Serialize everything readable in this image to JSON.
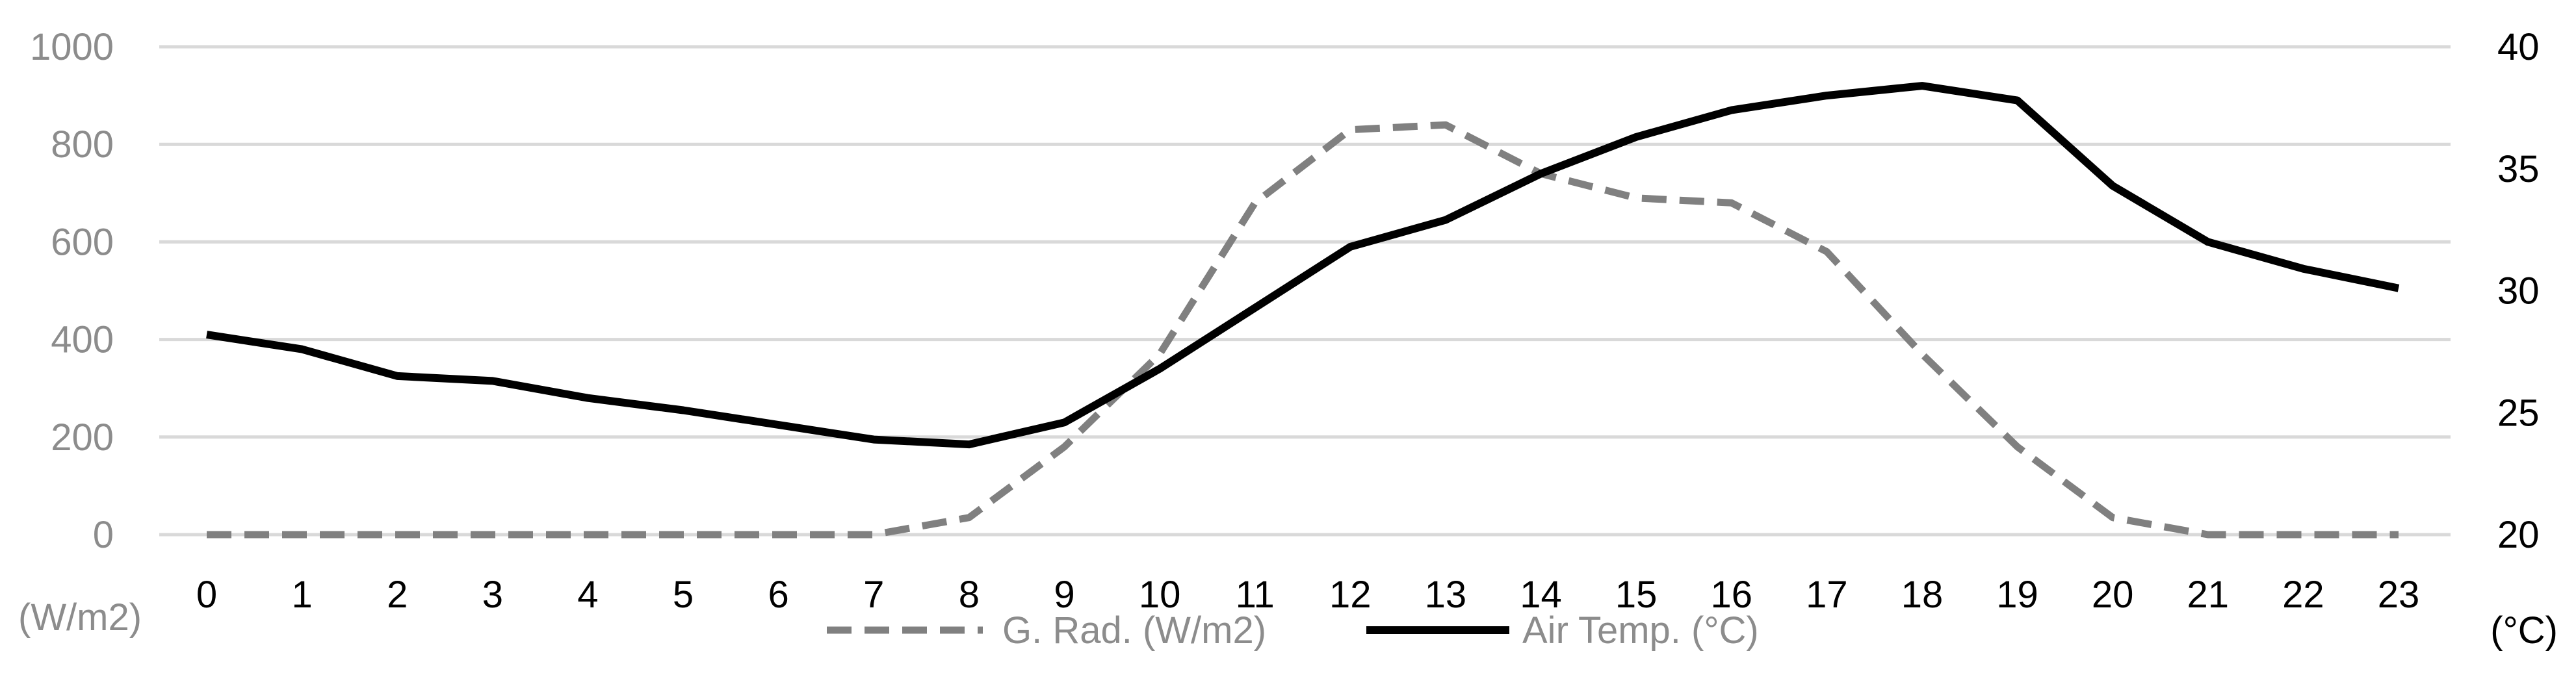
{
  "chart_data": {
    "type": "line",
    "title": "",
    "xlabel": "",
    "ylabel": "(W/m2)",
    "y2label": "(°C)",
    "categories": [
      "0",
      "1",
      "2",
      "3",
      "4",
      "5",
      "6",
      "7",
      "8",
      "9",
      "10",
      "11",
      "12",
      "13",
      "14",
      "15",
      "16",
      "17",
      "18",
      "19",
      "20",
      "21",
      "22",
      "23"
    ],
    "ylim": [
      0,
      1000
    ],
    "y2lim": [
      20,
      40
    ],
    "yticks": [
      "0",
      "200",
      "400",
      "600",
      "800",
      "1000"
    ],
    "y2ticks": [
      "20",
      "25",
      "30",
      "35",
      "40"
    ],
    "grid": true,
    "legend_position": "bottom",
    "series": [
      {
        "name": "G. Rad. (W/m2)",
        "axis": "left",
        "color": "#808080",
        "style": "dashed",
        "values": [
          0,
          0,
          0,
          0,
          0,
          0,
          0,
          0,
          35,
          180,
          370,
          680,
          830,
          840,
          740,
          690,
          680,
          580,
          370,
          180,
          35,
          0,
          0,
          0
        ]
      },
      {
        "name": "Air Temp. (°C)",
        "axis": "right",
        "color": "#000000",
        "style": "solid",
        "values": [
          28.2,
          27.6,
          26.5,
          26.3,
          25.6,
          25.1,
          24.5,
          23.9,
          23.7,
          24.6,
          26.8,
          29.3,
          31.8,
          32.9,
          34.8,
          36.3,
          37.4,
          38.0,
          38.4,
          37.8,
          34.3,
          32.0,
          30.9,
          30.1
        ]
      }
    ]
  }
}
